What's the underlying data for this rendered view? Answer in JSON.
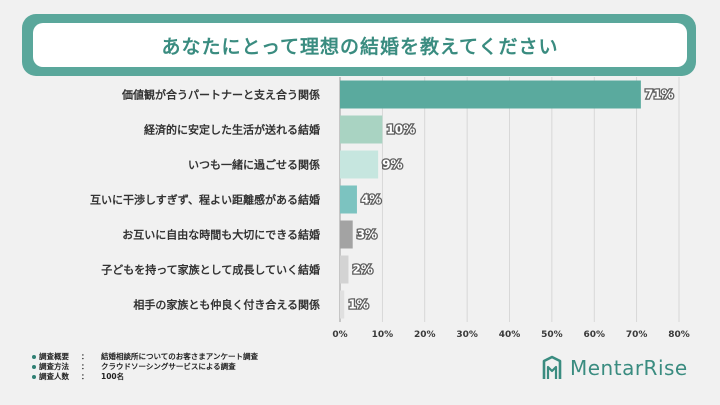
{
  "title": "あなたにとって理想の結婚を教えてください",
  "chart_data": {
    "type": "bar",
    "orientation": "horizontal",
    "title": "あなたにとって理想の結婚を教えてください",
    "categories": [
      "価値観が合うパートナーと支え合う関係",
      "経済的に安定した生活が送れる結婚",
      "いつも一緒に過ごせる関係",
      "互いに干渉しすぎず、程よい距離感がある結婚",
      "お互いに自由な時間も大切にできる結婚",
      "子どもを持って家族として成長していく結婚",
      "相手の家族とも仲良く付き合える関係"
    ],
    "values": [
      71,
      10,
      9,
      4,
      3,
      2,
      1
    ],
    "value_labels": [
      "71%",
      "10%",
      "9%",
      "4%",
      "3%",
      "2%",
      "1%"
    ],
    "bar_colors": [
      "#5aaa9e",
      "#a9d3c2",
      "#c6e6df",
      "#7cc3c0",
      "#a3a3a3",
      "#d3d3d3",
      "#e0e0e0"
    ],
    "xlim": [
      0,
      80
    ],
    "x_ticks": [
      0,
      10,
      20,
      30,
      40,
      50,
      60,
      70,
      80
    ],
    "x_tick_labels": [
      "0%",
      "10%",
      "20%",
      "30%",
      "40%",
      "50%",
      "60%",
      "70%",
      "80%"
    ],
    "grid": true
  },
  "notes": [
    {
      "key": "調査概要",
      "value": "結婚相談所についてのお客さまアンケート調査"
    },
    {
      "key": "調査方法",
      "value": "クラウドソーシングサービスによる調査"
    },
    {
      "key": "調査人数",
      "value": "100名"
    }
  ],
  "note_colon": "：",
  "logo": {
    "text": "MentarRise",
    "icon": "mentarrise-logo-icon",
    "color": "#3a8c80"
  }
}
